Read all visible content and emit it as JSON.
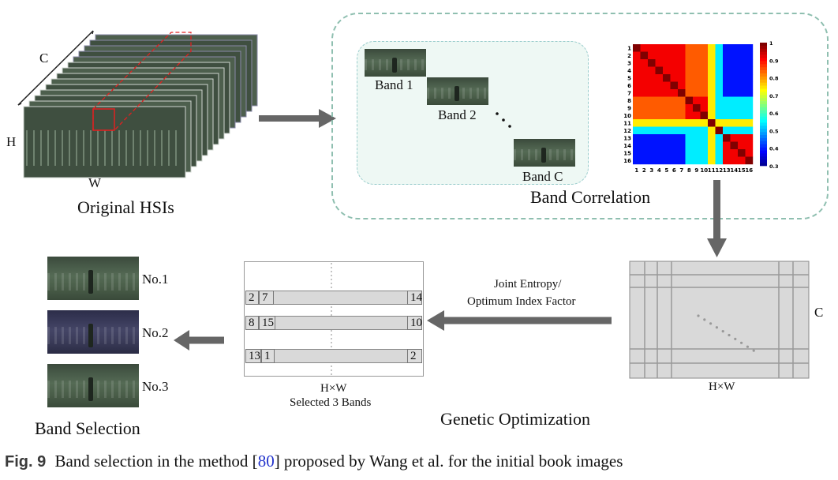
{
  "hsi": {
    "label": "Original HSIs",
    "axis_c": "C",
    "axis_h": "H",
    "axis_w": "W"
  },
  "correlation_panel": {
    "title": "Band Correlation",
    "bands": [
      "Band 1",
      "Band 2",
      "Band C"
    ],
    "heatmap_rows": [
      "1",
      "2",
      "3",
      "4",
      "5",
      "6",
      "7",
      "8",
      "9",
      "10",
      "11",
      "12",
      "13",
      "14",
      "15",
      "16"
    ],
    "heatmap_cols": [
      "1",
      "2",
      "3",
      "4",
      "5",
      "6",
      "7",
      "8",
      "9",
      "10",
      "11",
      "12",
      "13",
      "14",
      "15",
      "16"
    ],
    "colorbar_ticks": [
      "1",
      "0.9",
      "0.8",
      "0.7",
      "0.6",
      "0.5",
      "0.4",
      "0.3"
    ]
  },
  "genetic": {
    "title": "Genetic Optimization",
    "arrow_label_1": "Joint Entropy/",
    "arrow_label_2": "Optimum Index Factor",
    "matrix_label_c": "C",
    "matrix_label_hw": "H×W",
    "chrom_label_1": "H×W",
    "chrom_label_2": "Selected 3 Bands",
    "rows": [
      {
        "a": "2",
        "b": "7",
        "end": "14"
      },
      {
        "a": "8",
        "b": "15",
        "end": "10"
      },
      {
        "a": "13",
        "b": "1",
        "end": "2"
      }
    ]
  },
  "selection": {
    "title": "Band Selection",
    "items": [
      "No.1",
      "No.2",
      "No.3"
    ]
  },
  "caption": {
    "fig": "Fig. 9",
    "pre": "Band selection in the method [",
    "ref": "80",
    "post": "] proposed by Wang et al. for the initial book images"
  },
  "colors": {
    "dashed_border": "#8fbfb0",
    "panel_fill": "#eef8f4",
    "arrow": "#666666",
    "ref_link": "#2233cc"
  }
}
